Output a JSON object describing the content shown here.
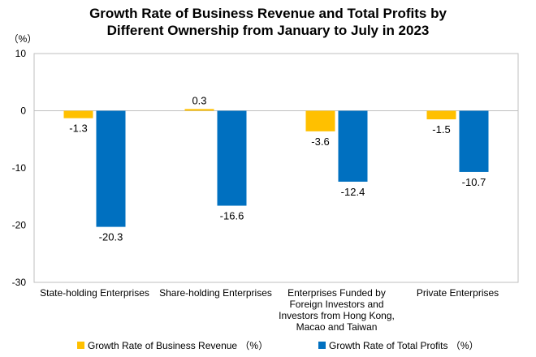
{
  "chart_data": {
    "type": "bar",
    "title_lines": [
      "Growth Rate of Business Revenue and Total Profits by",
      "Different Ownership from January to July in 2023"
    ],
    "unit_label": "（%）",
    "categories": [
      [
        "State-holding Enterprises"
      ],
      [
        "Share-holding Enterprises"
      ],
      [
        "Enterprises Funded by",
        "Foreign Investors and",
        "Investors from Hong Kong,",
        "Macao and Taiwan"
      ],
      [
        "Private Enterprises"
      ]
    ],
    "series": [
      {
        "name": "Growth Rate of Business Revenue （%）",
        "color": "#FFC000",
        "values": [
          -1.3,
          0.3,
          -3.6,
          -1.5
        ],
        "labels": [
          "-1.3",
          "0.3",
          "-3.6",
          "-1.5"
        ]
      },
      {
        "name": "Growth Rate of Total Profits （%）",
        "color": "#0070C0",
        "values": [
          -20.3,
          -16.6,
          -12.4,
          -10.7
        ],
        "labels": [
          "-20.3",
          "-16.6",
          "-12.4",
          "-10.7"
        ]
      }
    ],
    "ylim": [
      -30,
      10
    ],
    "yticks": [
      10,
      0,
      -10,
      -20,
      -30
    ],
    "ytick_labels": [
      "10",
      "0",
      "-10",
      "-20",
      "-30"
    ],
    "grid": false,
    "legend_position": "bottom"
  }
}
